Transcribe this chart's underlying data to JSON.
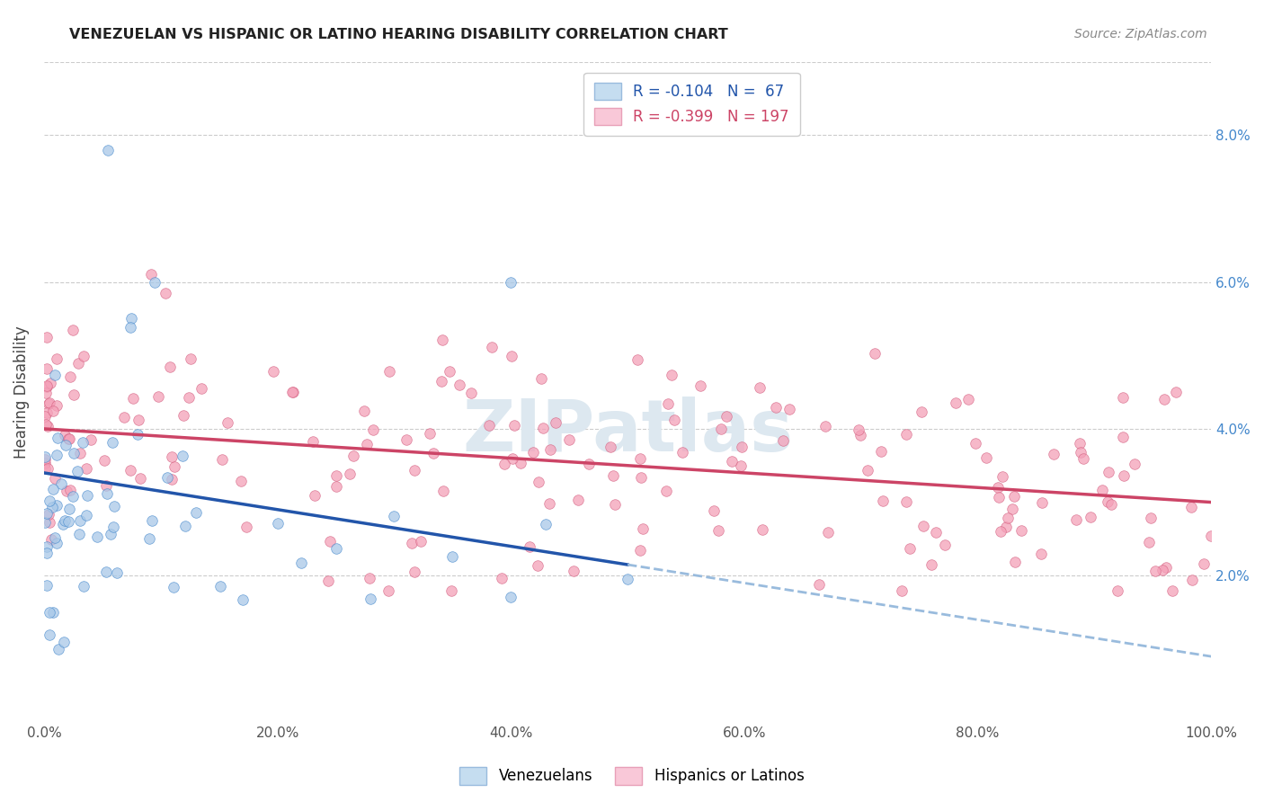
{
  "title": "VENEZUELAN VS HISPANIC OR LATINO HEARING DISABILITY CORRELATION CHART",
  "source": "Source: ZipAtlas.com",
  "ylabel": "Hearing Disability",
  "xlim": [
    0,
    1.0
  ],
  "ylim": [
    0,
    0.09
  ],
  "xticks": [
    0.0,
    0.2,
    0.4,
    0.6,
    0.8,
    1.0
  ],
  "xticklabels": [
    "0.0%",
    "20.0%",
    "40.0%",
    "60.0%",
    "80.0%",
    "100.0%"
  ],
  "yticks_right": [
    0.02,
    0.04,
    0.06,
    0.08
  ],
  "yticklabels_right": [
    "2.0%",
    "4.0%",
    "6.0%",
    "8.0%"
  ],
  "legend_labels": [
    "Venezuelans",
    "Hispanics or Latinos"
  ],
  "blue_R": "-0.104",
  "blue_N": "67",
  "pink_R": "-0.399",
  "pink_N": "197",
  "blue_face_color": "#a8c8e8",
  "blue_edge_color": "#4488cc",
  "pink_face_color": "#f4a0b8",
  "pink_edge_color": "#d46080",
  "blue_line_color": "#2255aa",
  "pink_line_color": "#cc4466",
  "blue_dash_color": "#99bbdd",
  "background_color": "#ffffff",
  "grid_color": "#cccccc",
  "right_tick_color": "#4488cc",
  "title_color": "#222222",
  "source_color": "#888888",
  "watermark_color": "#dde8f0"
}
